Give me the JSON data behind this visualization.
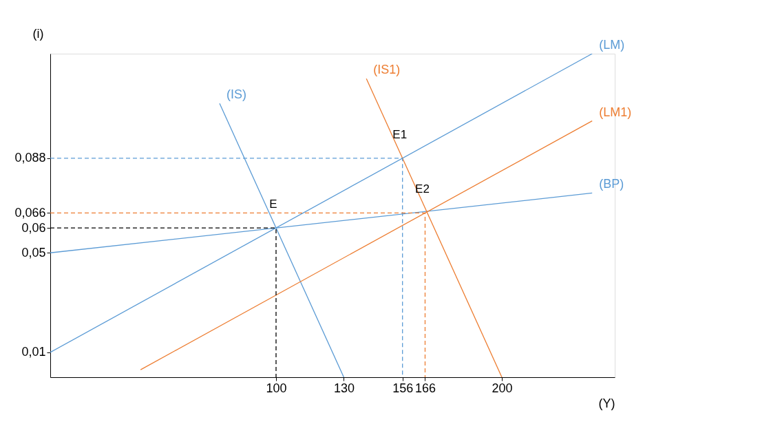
{
  "chart_data": {
    "type": "line",
    "xlabel": "(Y)",
    "ylabel": "(i)",
    "xlim": [
      0,
      250
    ],
    "ylim": [
      0,
      0.13
    ],
    "xticks": [
      100,
      130,
      156,
      166,
      200
    ],
    "yticks": [
      {
        "value": 0.01,
        "label": "0,01"
      },
      {
        "value": 0.05,
        "label": "0,05"
      },
      {
        "value": 0.06,
        "label": "0,06"
      },
      {
        "value": 0.066,
        "label": "0,066"
      },
      {
        "value": 0.088,
        "label": "0,088"
      }
    ],
    "grid": false,
    "marker": "none",
    "series": [
      {
        "name": "(IS)",
        "color": "#5b9bd5",
        "x": [
          75,
          130
        ],
        "values": [
          0.11,
          0
        ]
      },
      {
        "name": "(LM)",
        "color": "#5b9bd5",
        "x": [
          0,
          240
        ],
        "values": [
          0.01,
          0.13
        ]
      },
      {
        "name": "(BP)",
        "color": "#5b9bd5",
        "x": [
          0,
          240
        ],
        "values": [
          0.05,
          0.074
        ]
      },
      {
        "name": "(IS1)",
        "color": "#ed7d31",
        "x": [
          140,
          200
        ],
        "values": [
          0.12,
          0
        ]
      },
      {
        "name": "(LM1)",
        "color": "#ed7d31",
        "x": [
          40,
          240
        ],
        "values": [
          0.003,
          0.103
        ]
      },
      {
        "color": "#000000",
        "line_style": "dashed",
        "x": [
          0,
          100,
          100
        ],
        "values": [
          0.06,
          0.06,
          0
        ]
      },
      {
        "color": "#5b9bd5",
        "line_style": "dashed",
        "x": [
          0,
          156,
          156
        ],
        "values": [
          0.088,
          0.088,
          0
        ]
      },
      {
        "color": "#ed7d31",
        "line_style": "dashed",
        "x": [
          0,
          166,
          166
        ],
        "values": [
          0.066,
          0.066,
          0
        ]
      }
    ],
    "annotations": [
      {
        "text": "E",
        "x": 100,
        "y": 0.06
      },
      {
        "text": "E1",
        "x": 156,
        "y": 0.088
      },
      {
        "text": "E2",
        "x": 166,
        "y": 0.066
      }
    ]
  }
}
